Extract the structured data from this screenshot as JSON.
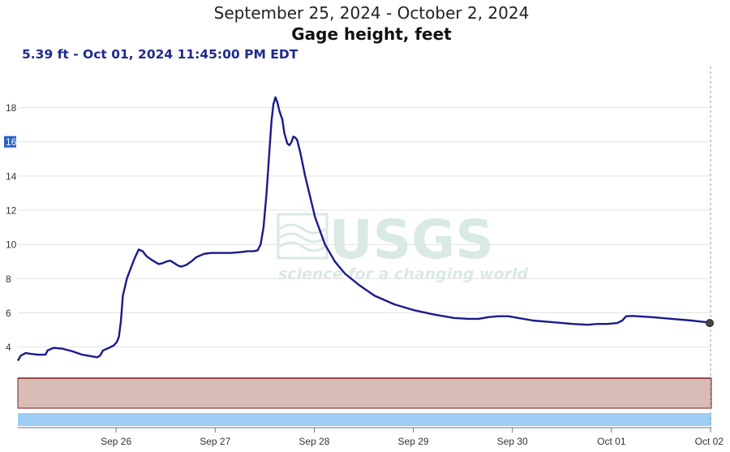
{
  "chart_data": {
    "type": "line",
    "title": "September 25, 2024 - October 2, 2024",
    "subtitle": "Gage height, feet",
    "tooltip": "5.39 ft - Oct 01, 2024 11:45:00 PM EDT",
    "watermark": {
      "text": "USGS",
      "tagline": "science for a changing world"
    },
    "x_tick_labels": [
      "Sep 26",
      "Sep 27",
      "Sep 28",
      "Sep 29",
      "Sep 30",
      "Oct 01",
      "Oct 02"
    ],
    "y_ticks": [
      4,
      6,
      8,
      10,
      12,
      14,
      16,
      18
    ],
    "highlighted_y_tick": 16,
    "x_range_days": [
      0,
      7
    ],
    "ylim": [
      2.18,
      20.4
    ],
    "grid": true,
    "series": [
      {
        "color": "#1a1a8c",
        "points": [
          [
            0.0,
            3.2
          ],
          [
            0.03,
            3.5
          ],
          [
            0.08,
            3.65
          ],
          [
            0.13,
            3.6
          ],
          [
            0.2,
            3.55
          ],
          [
            0.28,
            3.55
          ],
          [
            0.3,
            3.8
          ],
          [
            0.36,
            3.95
          ],
          [
            0.45,
            3.9
          ],
          [
            0.55,
            3.75
          ],
          [
            0.65,
            3.55
          ],
          [
            0.75,
            3.45
          ],
          [
            0.8,
            3.4
          ],
          [
            0.83,
            3.5
          ],
          [
            0.86,
            3.8
          ],
          [
            0.92,
            3.95
          ],
          [
            0.97,
            4.1
          ],
          [
            1.0,
            4.3
          ],
          [
            1.02,
            4.6
          ],
          [
            1.04,
            5.5
          ],
          [
            1.06,
            7.0
          ],
          [
            1.1,
            8.0
          ],
          [
            1.14,
            8.6
          ],
          [
            1.18,
            9.2
          ],
          [
            1.22,
            9.7
          ],
          [
            1.26,
            9.6
          ],
          [
            1.3,
            9.3
          ],
          [
            1.35,
            9.1
          ],
          [
            1.42,
            8.85
          ],
          [
            1.46,
            8.9
          ],
          [
            1.5,
            9.0
          ],
          [
            1.54,
            9.05
          ],
          [
            1.58,
            8.9
          ],
          [
            1.62,
            8.75
          ],
          [
            1.65,
            8.7
          ],
          [
            1.7,
            8.8
          ],
          [
            1.75,
            9.0
          ],
          [
            1.8,
            9.25
          ],
          [
            1.88,
            9.45
          ],
          [
            1.95,
            9.5
          ],
          [
            2.05,
            9.5
          ],
          [
            2.15,
            9.5
          ],
          [
            2.25,
            9.55
          ],
          [
            2.32,
            9.6
          ],
          [
            2.38,
            9.6
          ],
          [
            2.42,
            9.65
          ],
          [
            2.45,
            10.0
          ],
          [
            2.48,
            11.0
          ],
          [
            2.51,
            13.0
          ],
          [
            2.54,
            15.5
          ],
          [
            2.56,
            17.2
          ],
          [
            2.58,
            18.2
          ],
          [
            2.6,
            18.6
          ],
          [
            2.62,
            18.3
          ],
          [
            2.64,
            17.8
          ],
          [
            2.67,
            17.3
          ],
          [
            2.69,
            16.5
          ],
          [
            2.72,
            15.9
          ],
          [
            2.74,
            15.8
          ],
          [
            2.76,
            15.95
          ],
          [
            2.78,
            16.3
          ],
          [
            2.8,
            16.25
          ],
          [
            2.82,
            16.1
          ],
          [
            2.85,
            15.4
          ],
          [
            2.9,
            14.0
          ],
          [
            2.95,
            12.8
          ],
          [
            3.0,
            11.6
          ],
          [
            3.1,
            10.0
          ],
          [
            3.2,
            9.0
          ],
          [
            3.3,
            8.3
          ],
          [
            3.45,
            7.6
          ],
          [
            3.6,
            7.0
          ],
          [
            3.8,
            6.5
          ],
          [
            4.0,
            6.15
          ],
          [
            4.2,
            5.9
          ],
          [
            4.4,
            5.7
          ],
          [
            4.55,
            5.65
          ],
          [
            4.65,
            5.65
          ],
          [
            4.75,
            5.75
          ],
          [
            4.85,
            5.8
          ],
          [
            4.95,
            5.8
          ],
          [
            5.05,
            5.7
          ],
          [
            5.2,
            5.55
          ],
          [
            5.4,
            5.45
          ],
          [
            5.6,
            5.35
          ],
          [
            5.75,
            5.3
          ],
          [
            5.85,
            5.35
          ],
          [
            5.95,
            5.35
          ],
          [
            6.05,
            5.4
          ],
          [
            6.1,
            5.55
          ],
          [
            6.14,
            5.8
          ],
          [
            6.2,
            5.82
          ],
          [
            6.4,
            5.75
          ],
          [
            6.6,
            5.65
          ],
          [
            6.8,
            5.55
          ],
          [
            6.95,
            5.45
          ],
          [
            7.0,
            5.4
          ]
        ]
      }
    ]
  }
}
